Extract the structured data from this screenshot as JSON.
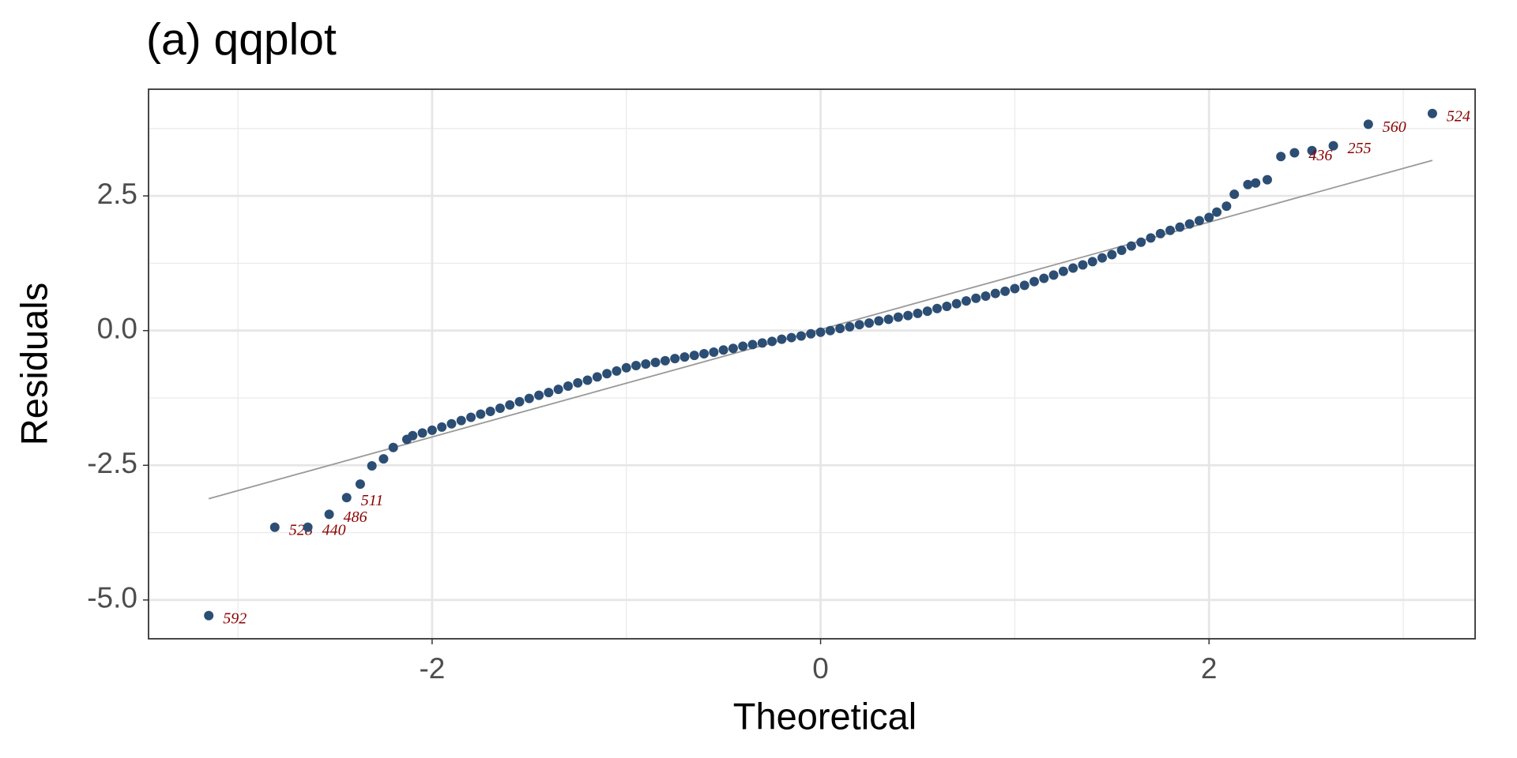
{
  "chart_data": {
    "type": "scatter",
    "title": "(a) qqplot",
    "x_label": "Theoretical",
    "y_label": "Residuals",
    "xlim": [
      -3.46,
      3.37
    ],
    "ylim": [
      -5.72,
      4.48
    ],
    "xticks": [
      -2,
      0,
      2
    ],
    "yticks": [
      {
        "value": -5,
        "label": "-5.0"
      },
      -2.5,
      {
        "value": 0,
        "label": "0.0"
      },
      2.5
    ],
    "x_minor_grid": [
      -3,
      -1,
      1,
      3
    ],
    "y_minor_grid": [
      -3.75,
      -1.25,
      1.25,
      3.75
    ],
    "grid": true,
    "color": "#2c4e74",
    "label_color": "#8b0000",
    "reference_line": {
      "x": [
        -3.15,
        3.15
      ],
      "y": [
        -3.12,
        3.16
      ],
      "color": "#999999"
    },
    "points": {
      "x": [
        -2.37,
        -2.31,
        -2.25,
        -2.2,
        -2.13,
        -2.1,
        -2.05,
        -2.0,
        -1.95,
        -1.9,
        -1.85,
        -1.8,
        -1.75,
        -1.7,
        -1.65,
        -1.6,
        -1.55,
        -1.5,
        -1.45,
        -1.4,
        -1.35,
        -1.3,
        -1.25,
        -1.2,
        -1.15,
        -1.1,
        -1.05,
        -1.0,
        -0.95,
        -0.9,
        -0.85,
        -0.8,
        -0.75,
        -0.7,
        -0.65,
        -0.6,
        -0.55,
        -0.5,
        -0.45,
        -0.4,
        -0.35,
        -0.3,
        -0.25,
        -0.2,
        -0.15,
        -0.1,
        -0.05,
        0,
        0.05,
        0.1,
        0.15,
        0.2,
        0.25,
        0.3,
        0.35,
        0.4,
        0.45,
        0.5,
        0.55,
        0.6,
        0.65,
        0.7,
        0.75,
        0.8,
        0.85,
        0.9,
        0.95,
        1.0,
        1.05,
        1.1,
        1.15,
        1.2,
        1.25,
        1.3,
        1.35,
        1.4,
        1.45,
        1.5,
        1.55,
        1.6,
        1.65,
        1.7,
        1.75,
        1.8,
        1.85,
        1.9,
        1.95,
        2.0,
        2.04,
        2.09,
        2.13,
        2.2,
        2.24,
        2.3,
        2.37,
        2.53
      ],
      "y": [
        -2.85,
        -2.51,
        -2.38,
        -2.17,
        -2.02,
        -1.95,
        -1.9,
        -1.85,
        -1.79,
        -1.73,
        -1.67,
        -1.61,
        -1.55,
        -1.5,
        -1.44,
        -1.38,
        -1.32,
        -1.26,
        -1.2,
        -1.15,
        -1.09,
        -1.03,
        -0.97,
        -0.92,
        -0.86,
        -0.8,
        -0.75,
        -0.69,
        -0.65,
        -0.62,
        -0.59,
        -0.56,
        -0.52,
        -0.49,
        -0.46,
        -0.43,
        -0.4,
        -0.36,
        -0.33,
        -0.29,
        -0.26,
        -0.23,
        -0.2,
        -0.16,
        -0.13,
        -0.1,
        -0.06,
        -0.03,
        0.0,
        0.04,
        0.07,
        0.11,
        0.14,
        0.18,
        0.21,
        0.25,
        0.28,
        0.32,
        0.36,
        0.41,
        0.45,
        0.5,
        0.55,
        0.6,
        0.64,
        0.69,
        0.73,
        0.78,
        0.84,
        0.91,
        0.97,
        1.03,
        1.1,
        1.16,
        1.22,
        1.28,
        1.35,
        1.41,
        1.49,
        1.57,
        1.64,
        1.72,
        1.8,
        1.86,
        1.92,
        1.98,
        2.04,
        2.1,
        2.2,
        2.31,
        2.53,
        2.71,
        2.74,
        2.8,
        3.23,
        3.34
      ]
    },
    "labeled_points": {
      "x": [
        -3.15,
        -2.81,
        -2.64,
        -2.53,
        -2.44,
        2.44,
        2.64,
        2.82,
        3.15
      ],
      "y": [
        -5.29,
        -3.65,
        -3.65,
        -3.41,
        -3.1,
        3.3,
        3.43,
        3.83,
        4.03
      ],
      "labels": [
        "592",
        "528",
        "440",
        "486",
        "511",
        "436",
        "255",
        "560",
        "524"
      ]
    }
  }
}
